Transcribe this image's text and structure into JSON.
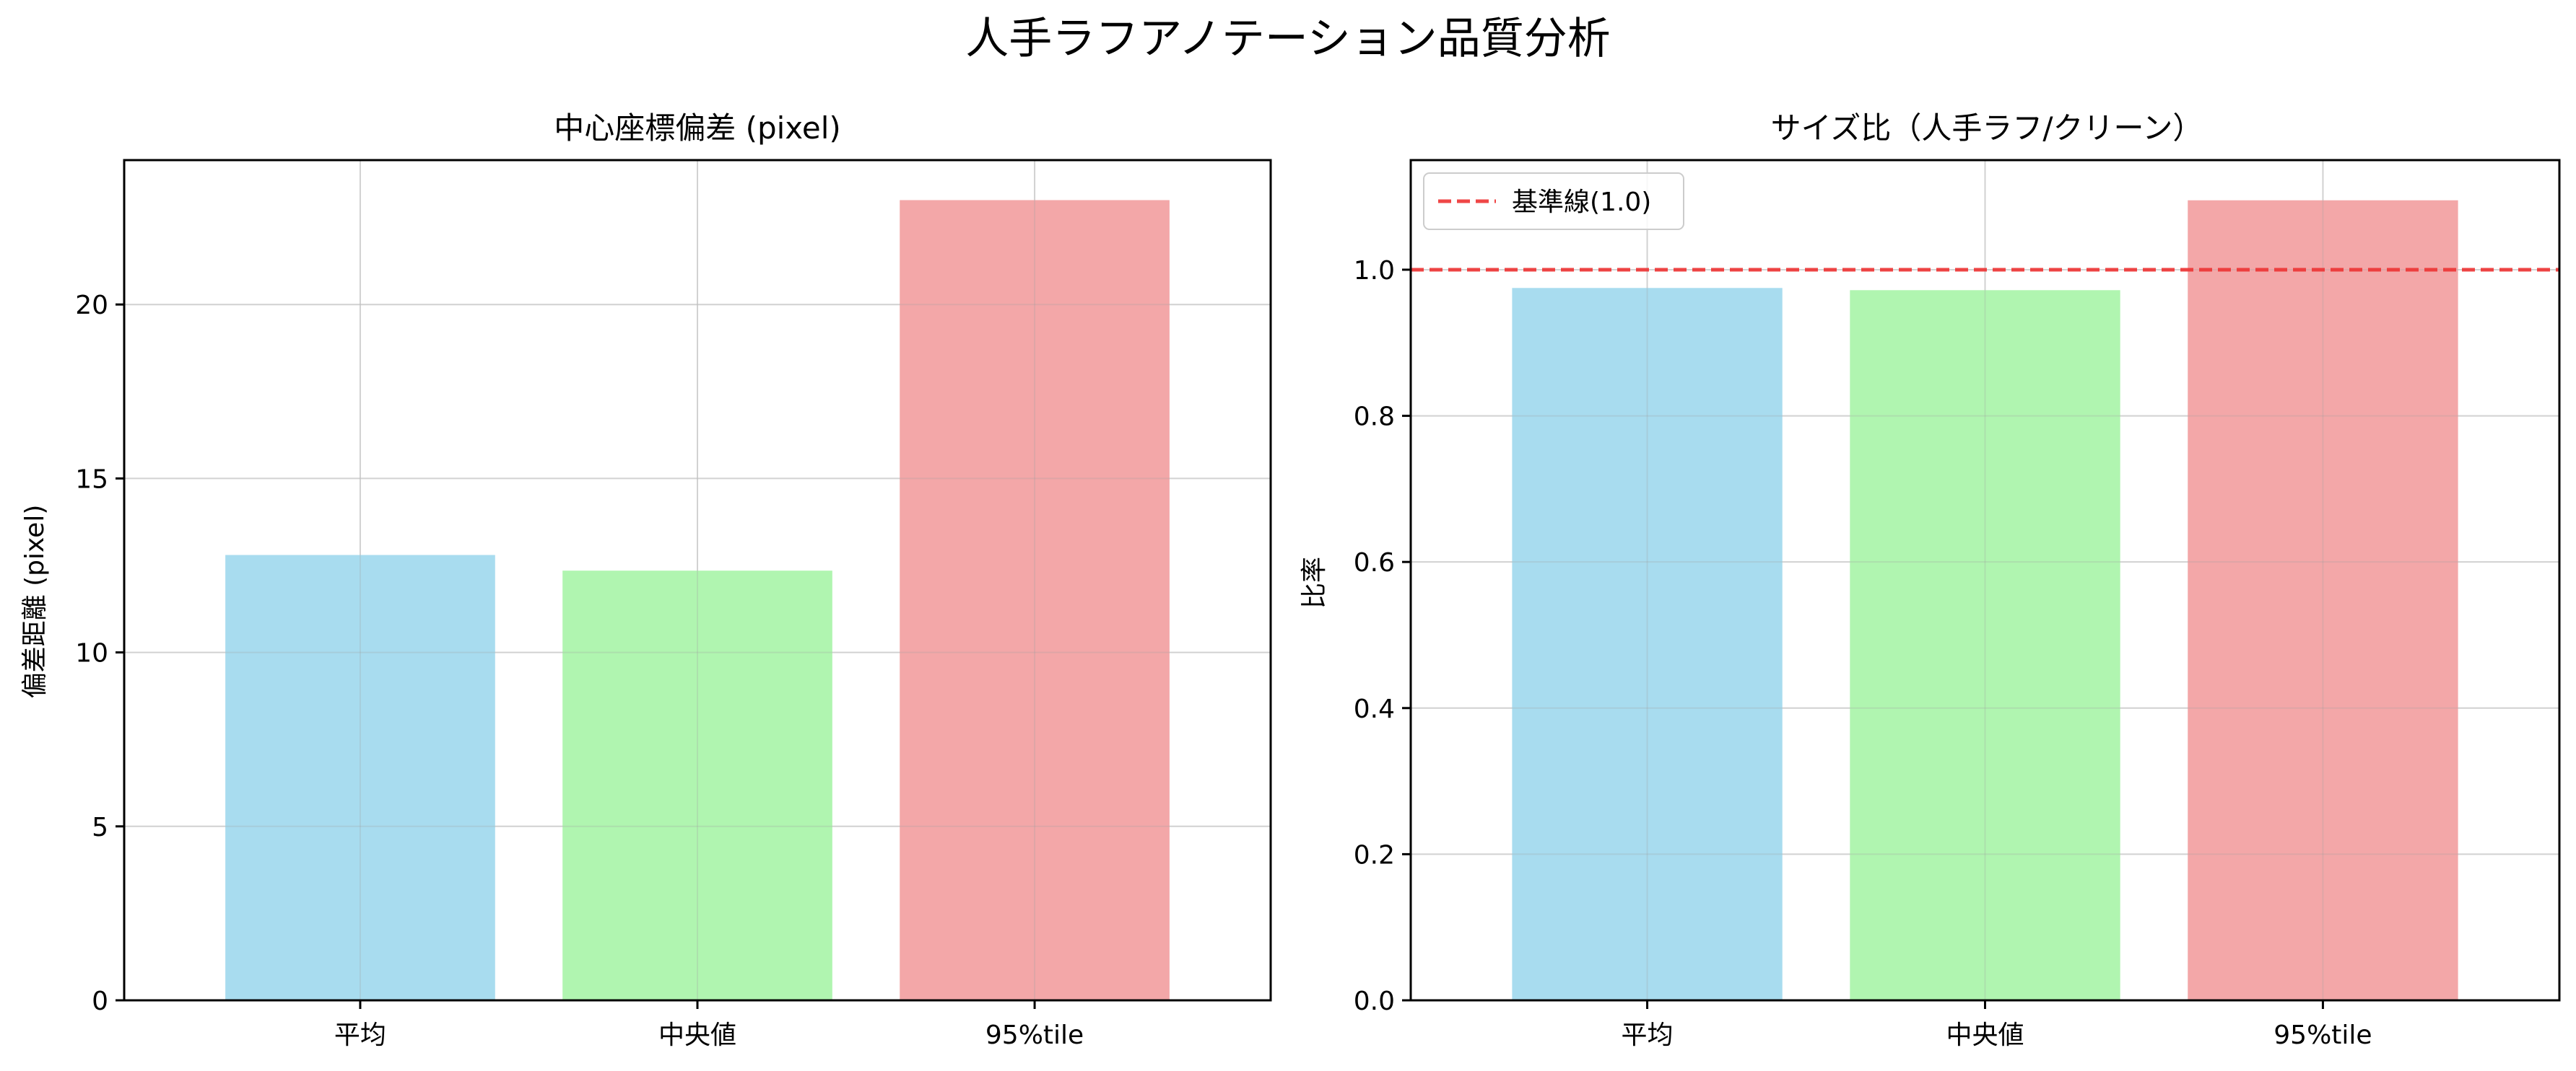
{
  "title": "人手ラフアノテーション品質分析",
  "chart_data": [
    {
      "type": "bar",
      "title": "中心座標偏差 (pixel)",
      "xlabel": "",
      "ylabel": "偏差距離 (pixel)",
      "categories": [
        "平均",
        "中央値",
        "95%tile"
      ],
      "values": [
        12.8,
        12.35,
        23.0
      ],
      "colors": [
        "#a8dcef",
        "#b0f5b0",
        "#f3a7a8"
      ],
      "ylim": [
        0,
        24.15
      ],
      "yticks": [
        0,
        5,
        10,
        15,
        20
      ],
      "grid": true
    },
    {
      "type": "bar",
      "title": "サイズ比（人手ラフ/クリーン）",
      "xlabel": "",
      "ylabel": "比率",
      "categories": [
        "平均",
        "中央値",
        "95%tile"
      ],
      "values": [
        0.975,
        0.972,
        1.095
      ],
      "colors": [
        "#a8dcef",
        "#b0f5b0",
        "#f3a7a8"
      ],
      "ylim": [
        0,
        1.15
      ],
      "yticks": [
        0.0,
        0.2,
        0.4,
        0.6,
        0.8,
        1.0
      ],
      "grid": true,
      "reference_line": {
        "y": 1.0,
        "color": "#ee3333",
        "label": "基準線(1.0)"
      },
      "legend": "top-left"
    }
  ]
}
